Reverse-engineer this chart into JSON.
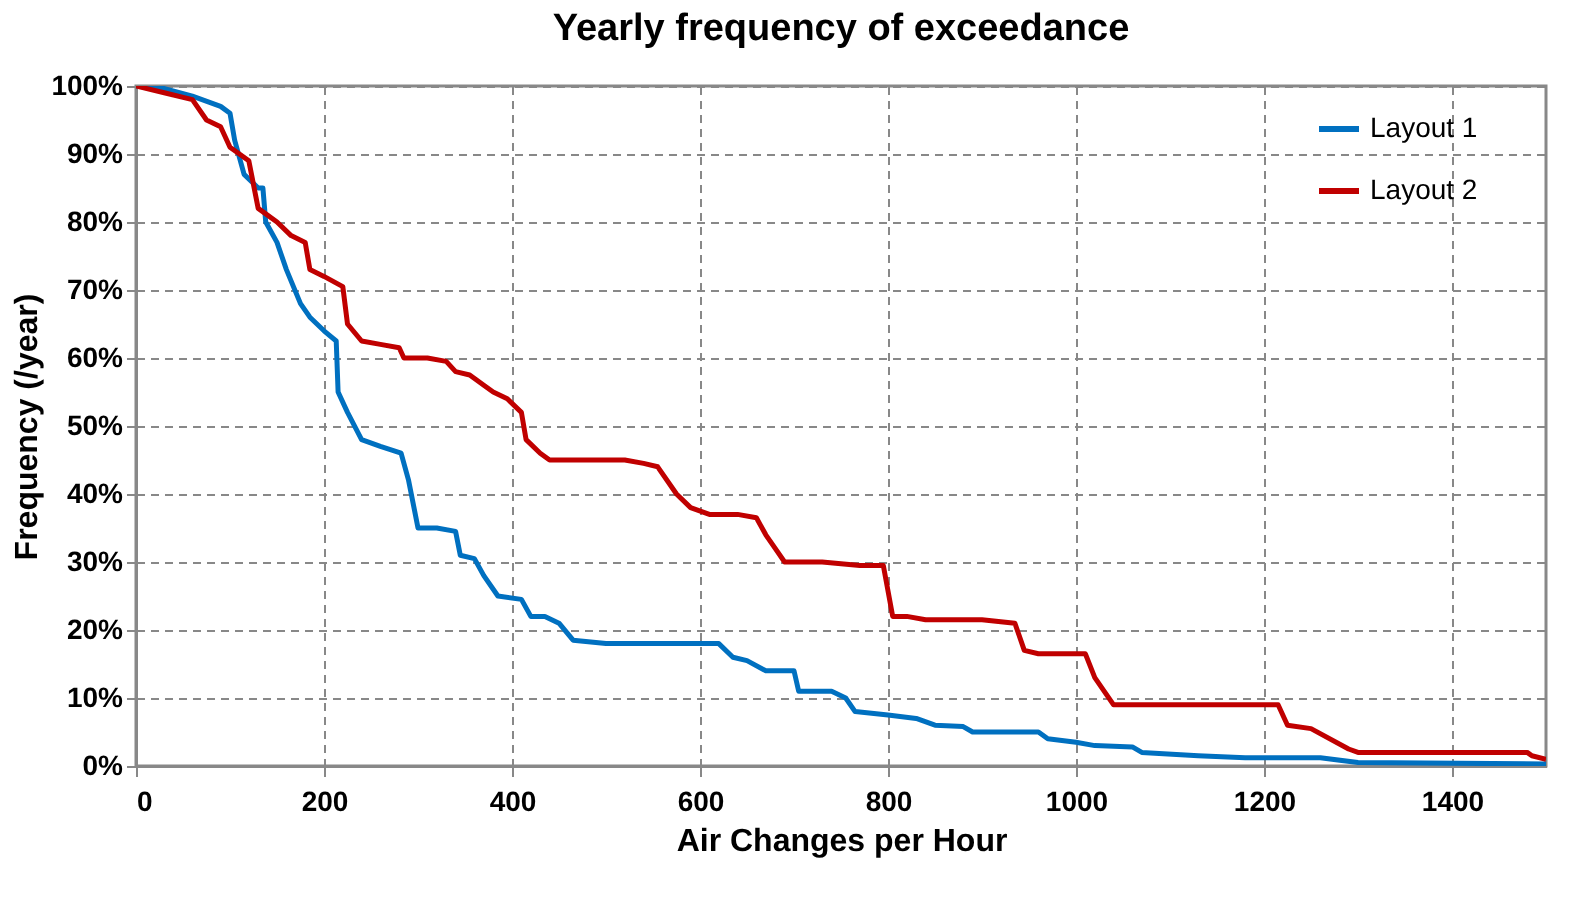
{
  "chart_data": {
    "type": "line",
    "title": "Yearly frequency of exceedance",
    "xlabel": "Air Changes per Hour",
    "ylabel": "Frequency (/year)",
    "xlim": [
      0,
      1500
    ],
    "xticks": [
      0,
      200,
      400,
      600,
      800,
      1000,
      1200,
      1400
    ],
    "ylim": [
      0,
      100
    ],
    "yticks": [
      {
        "value": 0,
        "label": "0%"
      },
      {
        "value": 10,
        "label": "10%"
      },
      {
        "value": 20,
        "label": "20%"
      },
      {
        "value": 30,
        "label": "30%"
      },
      {
        "value": 40,
        "label": "40%"
      },
      {
        "value": 50,
        "label": "50%"
      },
      {
        "value": 60,
        "label": "60%"
      },
      {
        "value": 70,
        "label": "70%"
      },
      {
        "value": 80,
        "label": "80%"
      },
      {
        "value": 90,
        "label": "90%"
      },
      {
        "value": 100,
        "label": "100%"
      }
    ],
    "grid": true,
    "legend": "top right",
    "line_style": "solid",
    "series": [
      {
        "name": "Layout 1",
        "color": "#0070c0",
        "x": [
          0,
          20,
          60,
          90,
          100,
          105,
          115,
          130,
          135,
          138,
          150,
          160,
          175,
          185,
          200,
          213,
          215,
          225,
          240,
          260,
          282,
          290,
          300,
          320,
          340,
          345,
          360,
          370,
          385,
          410,
          420,
          435,
          450,
          465,
          500,
          620,
          635,
          650,
          670,
          700,
          705,
          740,
          755,
          765,
          800,
          830,
          850,
          880,
          890,
          960,
          970,
          1000,
          1020,
          1060,
          1070,
          1130,
          1180,
          1260,
          1300,
          1500
        ],
        "values": [
          100,
          100,
          98.5,
          97,
          96,
          92,
          87,
          85,
          85,
          80,
          77,
          73,
          68,
          66,
          64,
          62.5,
          55,
          52,
          48,
          47,
          46,
          42,
          35,
          35,
          34.5,
          31,
          30.5,
          28,
          25,
          24.5,
          22,
          22,
          21,
          18.5,
          18,
          18,
          16,
          15.5,
          14,
          14,
          11,
          11,
          10,
          8,
          7.5,
          7,
          6,
          5.8,
          5,
          5,
          4,
          3.5,
          3,
          2.8,
          2,
          1.5,
          1.2,
          1.2,
          0.5,
          0.3
        ]
      },
      {
        "name": "Layout 2",
        "color": "#c00000",
        "x": [
          0,
          30,
          60,
          75,
          90,
          100,
          120,
          130,
          150,
          165,
          180,
          185,
          200,
          220,
          225,
          240,
          260,
          280,
          285,
          310,
          330,
          340,
          355,
          370,
          380,
          395,
          410,
          415,
          430,
          440,
          520,
          540,
          555,
          575,
          590,
          610,
          640,
          660,
          670,
          680,
          690,
          730,
          770,
          795,
          805,
          820,
          840,
          900,
          935,
          945,
          960,
          1010,
          1020,
          1040,
          1215,
          1225,
          1250,
          1290,
          1300,
          1480,
          1485,
          1500
        ],
        "values": [
          100,
          99,
          98,
          95,
          94,
          91,
          89,
          82,
          80,
          78,
          77,
          73,
          72,
          70.5,
          65,
          62.5,
          62,
          61.5,
          60,
          60,
          59.5,
          58,
          57.5,
          56,
          55,
          54,
          52,
          48,
          46,
          45,
          45,
          44.5,
          44,
          40,
          38,
          37,
          37,
          36.5,
          34,
          32,
          30,
          30,
          29.5,
          29.5,
          22,
          22,
          21.5,
          21.5,
          21,
          17,
          16.5,
          16.5,
          13,
          9,
          9,
          6,
          5.5,
          2.5,
          2,
          2,
          1.5,
          1
        ]
      }
    ]
  }
}
